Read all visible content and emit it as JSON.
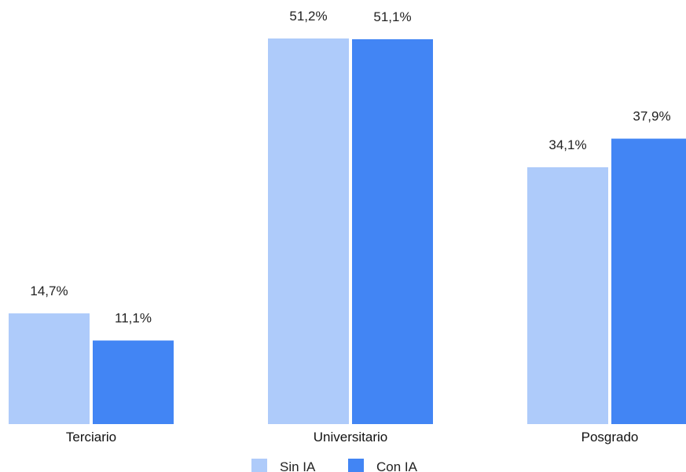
{
  "chart_data": {
    "type": "bar",
    "categories": [
      "Terciario",
      "Universitario",
      "Posgrado"
    ],
    "series": [
      {
        "name": "Sin IA",
        "color": "#aecbfa",
        "values": [
          14.7,
          51.2,
          34.1
        ],
        "labels": [
          "14,7%",
          "51,2%",
          "34,1%"
        ]
      },
      {
        "name": "Con IA",
        "color": "#4285f4",
        "values": [
          11.1,
          51.1,
          37.9
        ],
        "labels": [
          "11,1%",
          "51,1%",
          "37,9%"
        ]
      }
    ],
    "ylim": [
      0,
      51.2
    ],
    "grid": false,
    "legend": "bottom-center"
  }
}
